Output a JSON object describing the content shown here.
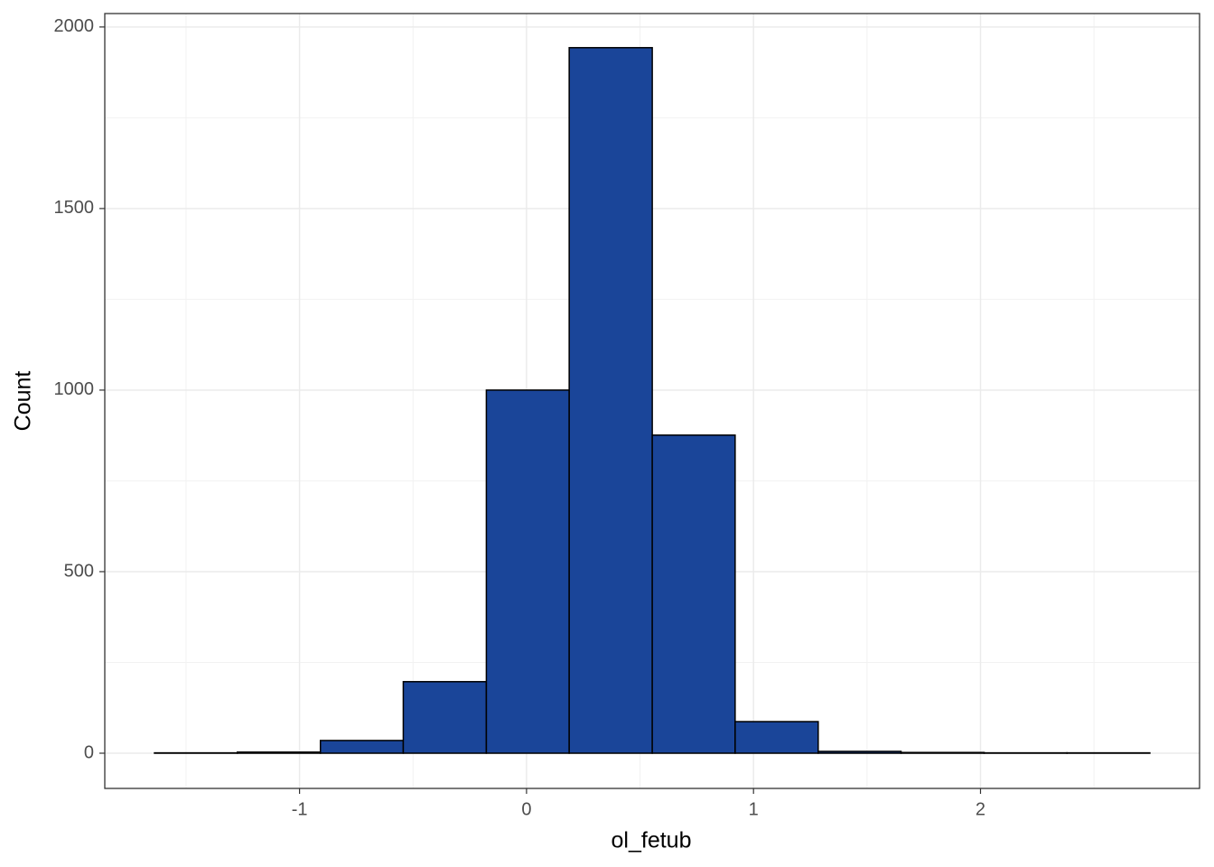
{
  "chart_data": {
    "type": "histogram",
    "x_label": "ol_fetub",
    "y_label": "Count",
    "bins": [
      -1.639,
      -1.274,
      -0.908,
      -0.543,
      -0.177,
      0.188,
      0.554,
      0.919,
      1.285,
      1.65,
      2.016,
      2.381,
      2.746
    ],
    "values": [
      1,
      3,
      35,
      197,
      1000,
      1943,
      876,
      87,
      5,
      2,
      1,
      1
    ],
    "color": "#1a4599",
    "edge_color": "#000000",
    "xlim": [
      -1.858,
      2.965
    ],
    "ylim": [
      -97,
      2037
    ],
    "xticks": [
      -1,
      0,
      1,
      2
    ],
    "yticks": [
      0,
      500,
      1000,
      1500,
      2000
    ],
    "grid": true
  }
}
